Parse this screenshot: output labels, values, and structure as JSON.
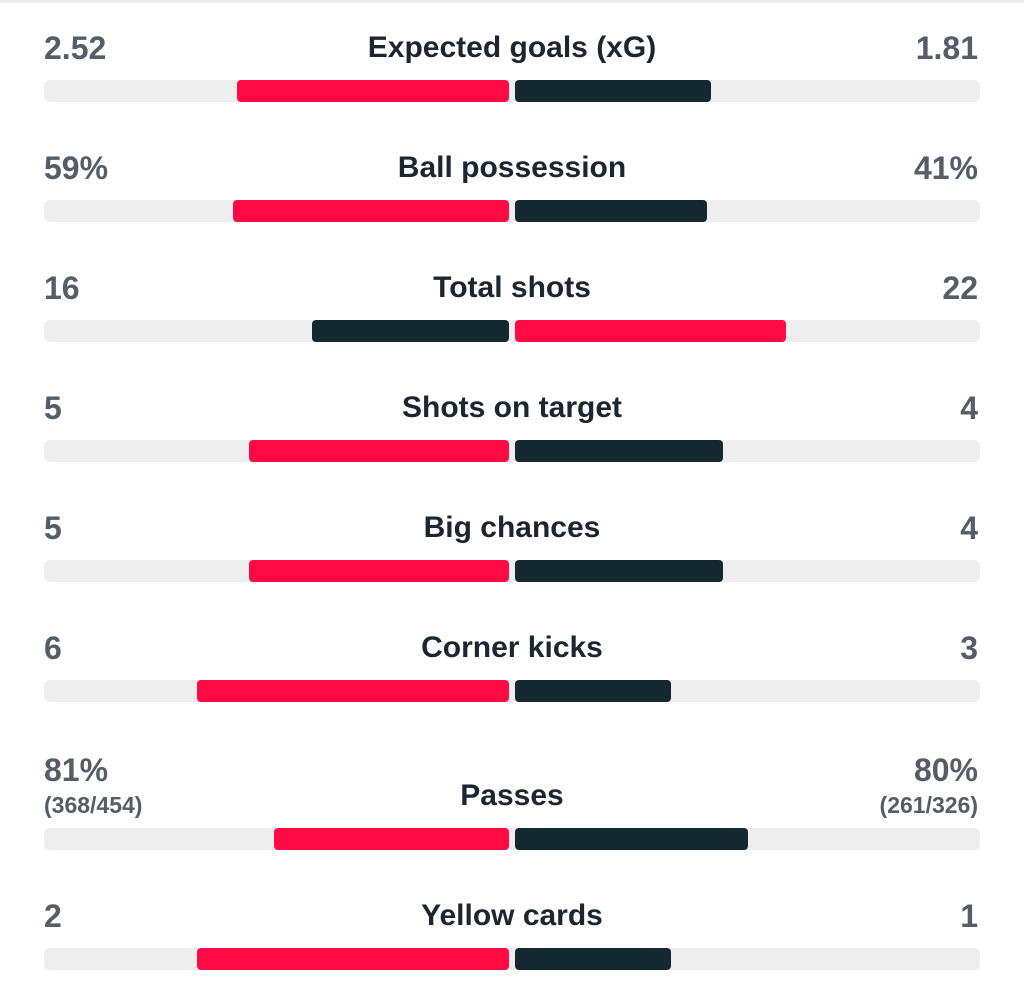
{
  "stats": [
    {
      "label": "Expected goals (xG)",
      "home": "2.52",
      "away": "1.81",
      "home_share": 0.582,
      "away_share": 0.418,
      "home_color": "#ff0a45",
      "away_color": "#142832"
    },
    {
      "label": "Ball possession",
      "home": "59%",
      "away": "41%",
      "home_share": 0.59,
      "away_share": 0.41,
      "home_color": "#ff0a45",
      "away_color": "#142832"
    },
    {
      "label": "Total shots",
      "home": "16",
      "away": "22",
      "home_share": 0.421,
      "away_share": 0.579,
      "home_color": "#142832",
      "away_color": "#ff0a45"
    },
    {
      "label": "Shots on target",
      "home": "5",
      "away": "4",
      "home_share": 0.556,
      "away_share": 0.444,
      "home_color": "#ff0a45",
      "away_color": "#142832"
    },
    {
      "label": "Big chances",
      "home": "5",
      "away": "4",
      "home_share": 0.556,
      "away_share": 0.444,
      "home_color": "#ff0a45",
      "away_color": "#142832"
    },
    {
      "label": "Corner kicks",
      "home": "6",
      "away": "3",
      "home_share": 0.667,
      "away_share": 0.333,
      "home_color": "#ff0a45",
      "away_color": "#142832"
    },
    {
      "label": "Passes",
      "home": "81%",
      "away": "80%",
      "home_detail": "(368/454)",
      "away_detail": "(261/326)",
      "home_share": 0.503,
      "away_share": 0.497,
      "home_color": "#ff0a45",
      "away_color": "#142832"
    },
    {
      "label": "Yellow cards",
      "home": "2",
      "away": "1",
      "home_share": 0.667,
      "away_share": 0.333,
      "home_color": "#ff0a45",
      "away_color": "#142832"
    }
  ]
}
